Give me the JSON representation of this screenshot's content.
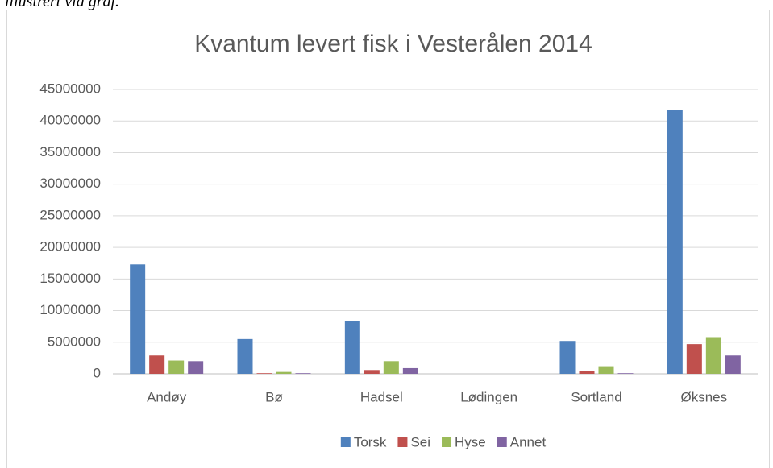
{
  "caption": "illustrert via graf.",
  "chart_data": {
    "type": "bar",
    "title": "Kvantum levert fisk i Vesterålen 2014",
    "categories": [
      "Andøy",
      "Bø",
      "Hadsel",
      "Lødingen",
      "Sortland",
      "Øksnes"
    ],
    "series": [
      {
        "name": "Torsk",
        "color": "#4f81bd",
        "values": [
          17300000,
          5500000,
          8400000,
          0,
          5200000,
          41800000
        ]
      },
      {
        "name": "Sei",
        "color": "#c0504d",
        "values": [
          2900000,
          100000,
          600000,
          0,
          400000,
          4700000
        ]
      },
      {
        "name": "Hyse",
        "color": "#9bbb59",
        "values": [
          2100000,
          300000,
          2000000,
          0,
          1200000,
          5800000
        ]
      },
      {
        "name": "Annet",
        "color": "#8064a2",
        "values": [
          2000000,
          100000,
          900000,
          0,
          100000,
          2900000
        ]
      }
    ],
    "ylim": [
      0,
      45000000
    ],
    "yticks": [
      0,
      5000000,
      10000000,
      15000000,
      20000000,
      25000000,
      30000000,
      35000000,
      40000000,
      45000000
    ],
    "grid": true,
    "legend": "bottom"
  }
}
